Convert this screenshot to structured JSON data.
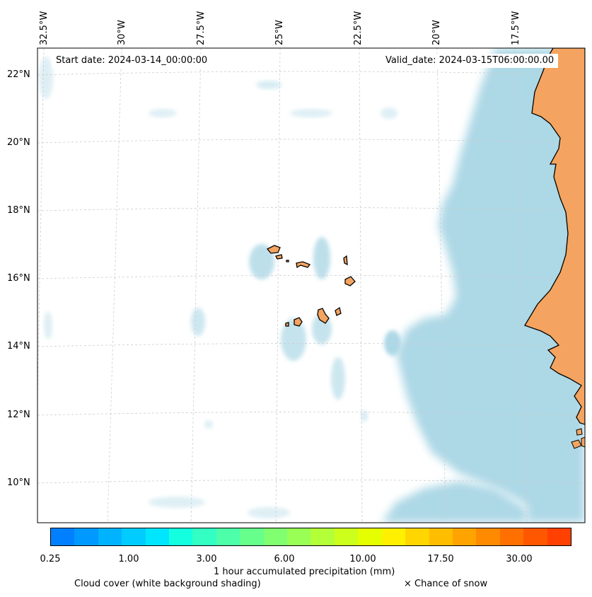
{
  "map": {
    "start_date_text": "Start date: 2024-03-14_00:00:00",
    "valid_date_text": "Valid_date: 2024-03-15T06:00:00.00",
    "lon_labels": [
      "32.5°W",
      "30°W",
      "27.5°W",
      "25°W",
      "22.5°W",
      "20°W",
      "17.5°W"
    ],
    "lat_labels": [
      "22°N",
      "20°N",
      "18°N",
      "16°N",
      "14°N",
      "12°N",
      "10°N"
    ],
    "colors": {
      "land": "#f4a460",
      "cloud": "#add8e6",
      "ocean": "#ffffff",
      "coastline": "#000000",
      "gridline": "#cccccc"
    }
  },
  "colorbar": {
    "label": "1 hour accumulated precipitation (mm)",
    "tick_labels": [
      "0.25",
      "1.00",
      "3.00",
      "6.00",
      "10.00",
      "17.50",
      "30.00"
    ],
    "colors": [
      "#0080ff",
      "#0099ff",
      "#00b3ff",
      "#00ccff",
      "#00e6ff",
      "#14ffe0",
      "#33ffc4",
      "#4dffa8",
      "#66ff8c",
      "#80ff70",
      "#99ff54",
      "#b3ff38",
      "#ccff1c",
      "#e6ff00",
      "#fff000",
      "#ffd600",
      "#ffbd00",
      "#ffa300",
      "#ff8a00",
      "#ff7000",
      "#ff5700",
      "#ff4000"
    ]
  },
  "legend": {
    "cloud_cover_text": "Cloud cover (white background shading)",
    "snow_text": "× Chance of snow"
  }
}
